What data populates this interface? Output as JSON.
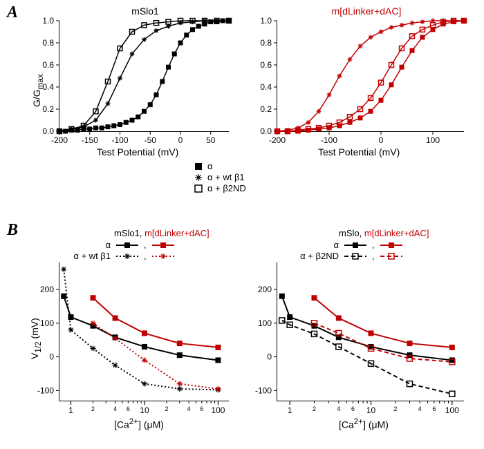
{
  "panelA": {
    "label": "A",
    "left_chart": {
      "type": "line",
      "title": "mSlo1",
      "xlabel": "Test Potential (mV)",
      "ylabel": "G/G_max",
      "xlim": [
        -200,
        80
      ],
      "ylim": [
        0,
        1.0
      ],
      "xticks": [
        -200,
        -150,
        -100,
        -50,
        0,
        50
      ],
      "yticks": [
        0.0,
        0.2,
        0.4,
        0.6,
        0.8,
        1.0
      ],
      "background_color": "#ffffff",
      "series": [
        {
          "name": "alpha_filled",
          "color": "#000000",
          "marker": "square-filled",
          "x": [
            -200,
            -190,
            -180,
            -170,
            -160,
            -150,
            -140,
            -130,
            -120,
            -110,
            -100,
            -90,
            -80,
            -70,
            -60,
            -50,
            -40,
            -30,
            -20,
            -10,
            0,
            10,
            20,
            30,
            40,
            50,
            60,
            70,
            80
          ],
          "y": [
            0.0,
            0.0,
            0.01,
            0.01,
            0.02,
            0.02,
            0.03,
            0.03,
            0.04,
            0.05,
            0.06,
            0.08,
            0.1,
            0.13,
            0.18,
            0.24,
            0.33,
            0.45,
            0.58,
            0.7,
            0.8,
            0.87,
            0.92,
            0.95,
            0.97,
            0.99,
            0.99,
            1.0,
            1.0
          ]
        },
        {
          "name": "alpha_wtb1",
          "color": "#000000",
          "marker": "asterisk",
          "x": [
            -200,
            -180,
            -160,
            -140,
            -120,
            -100,
            -80,
            -60,
            -40,
            -20,
            0,
            20,
            40,
            60,
            80
          ],
          "y": [
            0.0,
            0.02,
            0.04,
            0.1,
            0.25,
            0.48,
            0.7,
            0.83,
            0.91,
            0.95,
            0.98,
            0.99,
            1.0,
            1.0,
            1.0
          ]
        },
        {
          "name": "alpha_b2nd",
          "color": "#000000",
          "marker": "square-open",
          "x": [
            -200,
            -180,
            -160,
            -140,
            -120,
            -100,
            -80,
            -60,
            -40,
            -20,
            0,
            20,
            40,
            60,
            80
          ],
          "y": [
            0.0,
            0.02,
            0.05,
            0.18,
            0.45,
            0.75,
            0.9,
            0.96,
            0.98,
            0.99,
            1.0,
            1.0,
            1.0,
            1.0,
            1.0
          ]
        }
      ]
    },
    "right_chart": {
      "type": "line",
      "title": "m[dLinker+dAC]",
      "title_color": "#c00000",
      "xlabel": "Test Potential (mV)",
      "xlim": [
        -200,
        160
      ],
      "ylim": [
        0,
        1.0
      ],
      "xticks": [
        -200,
        -100,
        0,
        100
      ],
      "yticks": [
        0.0,
        0.2,
        0.4,
        0.6,
        0.8,
        1.0
      ],
      "series": [
        {
          "name": "alpha_filled",
          "color": "#c00000",
          "marker": "square-filled",
          "x": [
            -200,
            -180,
            -160,
            -140,
            -120,
            -100,
            -80,
            -60,
            -40,
            -20,
            0,
            20,
            40,
            60,
            80,
            100,
            120,
            140,
            160
          ],
          "y": [
            0.0,
            0.0,
            0.0,
            0.01,
            0.02,
            0.03,
            0.05,
            0.08,
            0.12,
            0.18,
            0.28,
            0.42,
            0.58,
            0.73,
            0.85,
            0.92,
            0.97,
            0.99,
            1.0
          ]
        },
        {
          "name": "alpha_wtb1",
          "color": "#c00000",
          "marker": "asterisk",
          "x": [
            -200,
            -180,
            -160,
            -140,
            -120,
            -100,
            -80,
            -60,
            -40,
            -20,
            0,
            20,
            40,
            60,
            80,
            100,
            120,
            140,
            160
          ],
          "y": [
            0.0,
            0.01,
            0.03,
            0.08,
            0.18,
            0.33,
            0.5,
            0.65,
            0.77,
            0.85,
            0.9,
            0.94,
            0.96,
            0.98,
            0.99,
            1.0,
            1.0,
            1.0,
            1.0
          ]
        },
        {
          "name": "alpha_b2nd",
          "color": "#c00000",
          "marker": "square-open",
          "x": [
            -200,
            -180,
            -160,
            -140,
            -120,
            -100,
            -80,
            -60,
            -40,
            -20,
            0,
            20,
            40,
            60,
            80,
            100,
            120,
            140,
            160
          ],
          "y": [
            0.0,
            0.0,
            0.01,
            0.02,
            0.03,
            0.05,
            0.08,
            0.13,
            0.2,
            0.3,
            0.44,
            0.6,
            0.75,
            0.86,
            0.92,
            0.96,
            0.99,
            1.0,
            1.0
          ]
        }
      ]
    },
    "legend": {
      "items": [
        {
          "marker": "square-filled",
          "label": "α"
        },
        {
          "marker": "asterisk",
          "label": "α + wt β1"
        },
        {
          "marker": "square-open",
          "label": "α + β2ND"
        }
      ],
      "color": "#000000",
      "fontsize": 13
    }
  },
  "panelB": {
    "label": "B",
    "left_chart": {
      "type": "line",
      "xlabel": "[Ca2+] (μM)",
      "ylabel": "V1/2 (mV)",
      "xscale": "log",
      "xlim": [
        0.7,
        140
      ],
      "ylim": [
        -130,
        280
      ],
      "xticks": [
        1,
        10,
        100
      ],
      "yticks": [
        -100,
        0,
        100,
        200
      ],
      "xminor": [
        2,
        3,
        4,
        5,
        6,
        7,
        8,
        9,
        20,
        30,
        40,
        50,
        60,
        70,
        80,
        90
      ],
      "legend_title_black": "mSlo1,",
      "legend_title_red": "m[dLinker+dAC]",
      "series": [
        {
          "name": "mslo1_alpha",
          "color": "#000000",
          "marker": "square-filled",
          "line": "solid",
          "x": [
            0.8,
            1,
            2,
            4,
            10,
            30,
            100
          ],
          "y": [
            180,
            118,
            92,
            58,
            30,
            5,
            -10
          ]
        },
        {
          "name": "mdl_alpha",
          "color": "#c00000",
          "marker": "square-filled",
          "line": "solid",
          "x": [
            2,
            4,
            10,
            30,
            100
          ],
          "y": [
            175,
            115,
            70,
            40,
            28
          ]
        },
        {
          "name": "mslo1_wtb1",
          "color": "#000000",
          "marker": "asterisk",
          "line": "dotted",
          "x": [
            0.8,
            1,
            2,
            4,
            10,
            30,
            100
          ],
          "y": [
            260,
            80,
            25,
            -25,
            -80,
            -95,
            -98
          ]
        },
        {
          "name": "mdl_wtb1",
          "color": "#c00000",
          "marker": "asterisk",
          "line": "dotted",
          "x": [
            2,
            4,
            10,
            30,
            100
          ],
          "y": [
            100,
            55,
            -10,
            -80,
            -95
          ]
        }
      ],
      "left_legend": [
        {
          "label": "α",
          "black_marker": "square-filled",
          "black_line": "solid",
          "red_marker": "square-filled",
          "red_line": "solid"
        },
        {
          "label": "α + wt β1",
          "black_marker": "asterisk",
          "black_line": "dotted",
          "red_marker": "asterisk",
          "red_line": "dotted"
        }
      ]
    },
    "right_chart": {
      "type": "line",
      "xlabel": "[Ca2+] (μM)",
      "xscale": "log",
      "xlim": [
        0.7,
        140
      ],
      "ylim": [
        -130,
        280
      ],
      "xticks": [
        1,
        10,
        100
      ],
      "yticks": [
        -100,
        0,
        100,
        200
      ],
      "xminor": [
        2,
        3,
        4,
        5,
        6,
        7,
        8,
        9,
        20,
        30,
        40,
        50,
        60,
        70,
        80,
        90
      ],
      "legend_title_black": "mSlo,",
      "legend_title_red": "m[dLinker+dAC]",
      "series": [
        {
          "name": "mslo_alpha",
          "color": "#000000",
          "marker": "square-filled",
          "line": "solid",
          "x": [
            0.8,
            1,
            2,
            4,
            10,
            30,
            100
          ],
          "y": [
            180,
            118,
            92,
            58,
            30,
            5,
            -10
          ]
        },
        {
          "name": "mdl_alpha",
          "color": "#c00000",
          "marker": "square-filled",
          "line": "solid",
          "x": [
            2,
            4,
            10,
            30,
            100
          ],
          "y": [
            175,
            115,
            70,
            40,
            28
          ]
        },
        {
          "name": "mslo_b2nd",
          "color": "#000000",
          "marker": "square-open",
          "line": "dashed",
          "x": [
            0.8,
            1,
            2,
            4,
            10,
            30,
            100
          ],
          "y": [
            108,
            95,
            68,
            30,
            -20,
            -80,
            -110
          ]
        },
        {
          "name": "mdl_b2nd",
          "color": "#c00000",
          "marker": "square-open",
          "line": "dashed",
          "x": [
            2,
            4,
            10,
            30,
            100
          ],
          "y": [
            100,
            70,
            25,
            -5,
            -15
          ]
        }
      ],
      "right_legend": [
        {
          "label": "α",
          "black_marker": "square-filled",
          "black_line": "solid",
          "red_marker": "square-filled",
          "red_line": "solid"
        },
        {
          "label": "α + β2ND",
          "black_marker": "square-open",
          "black_line": "dashed",
          "red_marker": "square-open",
          "red_line": "dashed"
        }
      ]
    }
  },
  "colors": {
    "black": "#000000",
    "red": "#c00000"
  }
}
